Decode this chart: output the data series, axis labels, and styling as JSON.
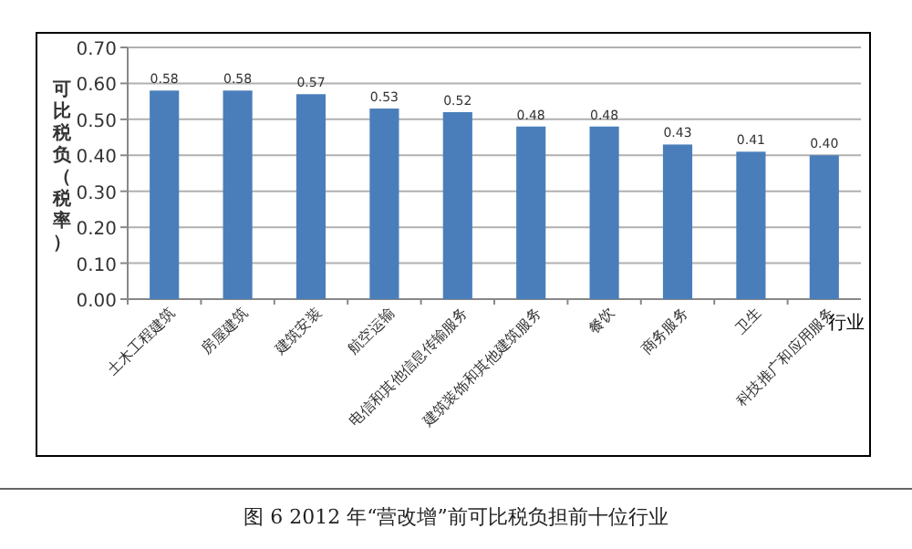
{
  "chart_data": {
    "type": "bar",
    "ylabel": "可比税负（税率）",
    "xlabel": "行业",
    "categories": [
      "土木工程建筑",
      "房屋建筑",
      "建筑安装",
      "航空运输",
      "电信和其他信息传输服务",
      "建筑装饰和其他建筑服务",
      "餐饮",
      "商务服务",
      "卫生",
      "科技推广和应用服务"
    ],
    "values": [
      0.58,
      0.58,
      0.57,
      0.53,
      0.52,
      0.48,
      0.48,
      0.43,
      0.41,
      0.4
    ],
    "color": "#4a7ebb",
    "ylim": [
      0,
      0.7
    ],
    "yticks": [
      {
        "value": 0,
        "label": "0.00"
      },
      {
        "value": 0.1,
        "label": "0.10"
      },
      {
        "value": 0.2,
        "label": "0.20"
      },
      {
        "value": 0.3,
        "label": "0.30"
      },
      {
        "value": 0.4,
        "label": "0.40"
      },
      {
        "value": 0.5,
        "label": "0.50"
      },
      {
        "value": 0.6,
        "label": "0.60"
      },
      {
        "value": 0.7,
        "label": "0.70"
      }
    ],
    "grid": "y",
    "value_labels": [
      "0.58",
      "0.58",
      "0.57",
      "0.53",
      "0.52",
      "0.48",
      "0.48",
      "0.43",
      "0.41",
      "0.40"
    ],
    "annotations": [
      "图 6 2012 年“营改增”前可比税负担前十位行业"
    ]
  }
}
